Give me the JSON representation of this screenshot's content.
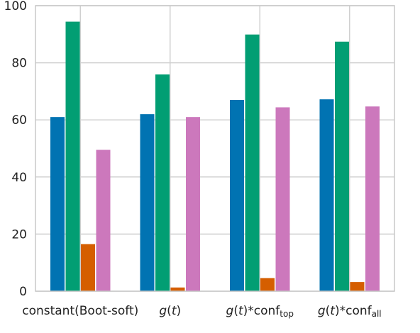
{
  "chart_data": {
    "type": "bar",
    "categories": [
      "constant(Boot-soft)",
      "g(t)",
      "g(t)*conf_top",
      "g(t)*conf_all"
    ],
    "category_labels": [
      [
        {
          "text": "constant(Boot-soft)",
          "style": "normal"
        }
      ],
      [
        {
          "text": "g",
          "style": "italic"
        },
        {
          "text": "(",
          "style": "normal"
        },
        {
          "text": "t",
          "style": "italic"
        },
        {
          "text": ")",
          "style": "normal"
        }
      ],
      [
        {
          "text": "g",
          "style": "italic"
        },
        {
          "text": "(",
          "style": "normal"
        },
        {
          "text": "t",
          "style": "italic"
        },
        {
          "text": ")*conf",
          "style": "normal"
        },
        {
          "text": "top",
          "style": "sub"
        }
      ],
      [
        {
          "text": "g",
          "style": "italic"
        },
        {
          "text": "(",
          "style": "normal"
        },
        {
          "text": "t",
          "style": "italic"
        },
        {
          "text": ")*conf",
          "style": "normal"
        },
        {
          "text": "all",
          "style": "sub"
        }
      ]
    ],
    "series": [
      {
        "color": "#0173b2",
        "values": [
          61.0,
          62.0,
          67.0,
          67.2
        ]
      },
      {
        "color": "#029e73",
        "values": [
          94.4,
          75.9,
          89.9,
          87.4
        ]
      },
      {
        "color": "#d55e00",
        "values": [
          16.5,
          1.3,
          4.6,
          3.2
        ]
      },
      {
        "color": "#cc78bc",
        "values": [
          49.5,
          61.0,
          64.4,
          64.7
        ]
      }
    ],
    "ylim": [
      0,
      100
    ],
    "yticks": [
      0,
      20,
      40,
      60,
      80,
      100
    ],
    "grid": true,
    "title": "",
    "xlabel": "",
    "ylabel": ""
  }
}
